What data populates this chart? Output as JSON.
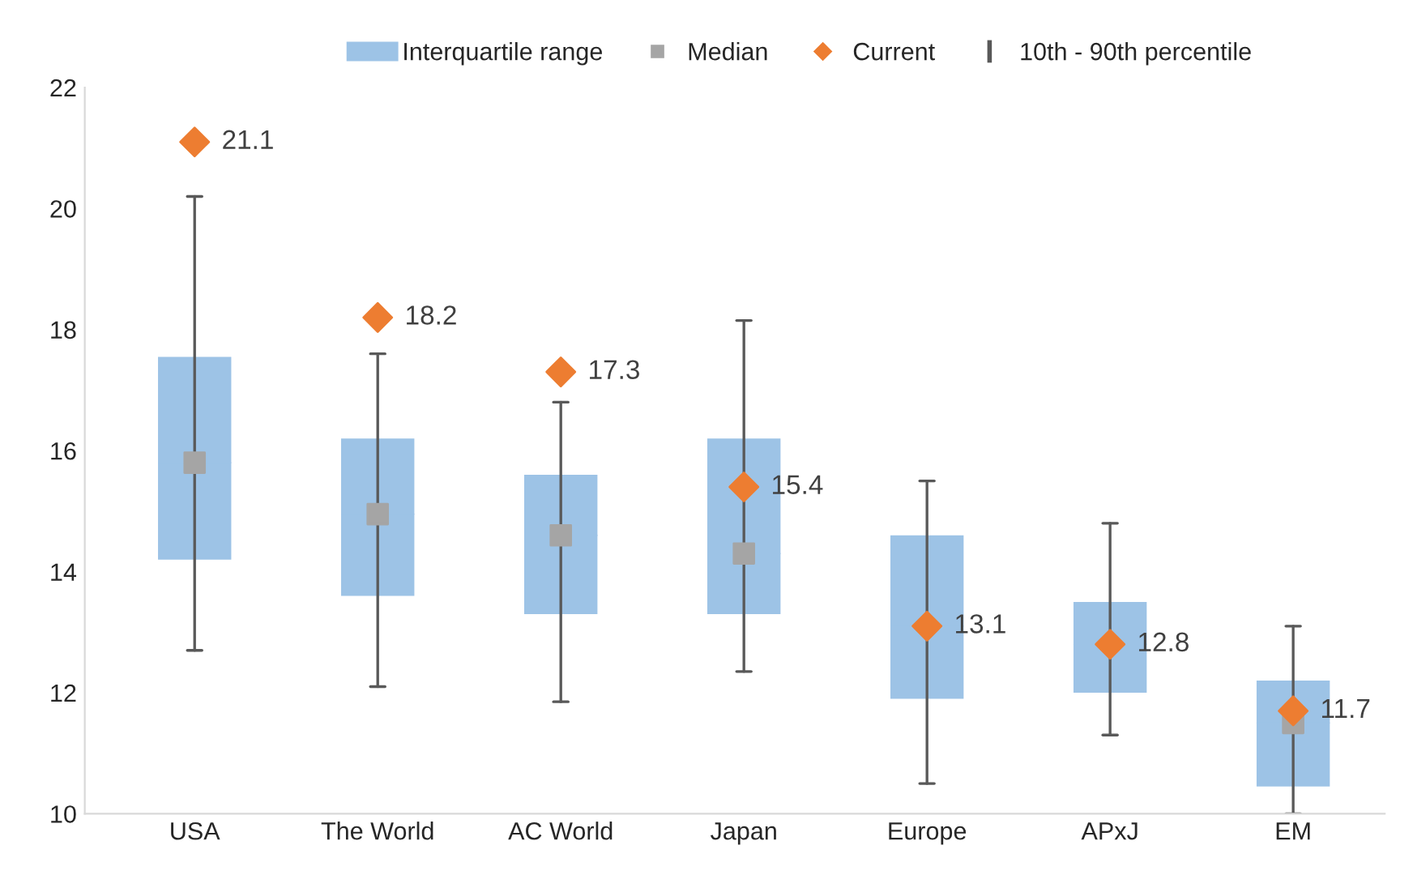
{
  "chart_data": {
    "type": "box",
    "categories": [
      "USA",
      "The World",
      "AC World",
      "Japan",
      "Europe",
      "APxJ",
      "EM"
    ],
    "ylim": [
      10,
      22
    ],
    "yticks": [
      10,
      12,
      14,
      16,
      18,
      20,
      22
    ],
    "grid": false,
    "legend": "top",
    "annotations": [
      "10th - 90th percentile"
    ],
    "series": [
      {
        "type": "box",
        "name": "Interquartile range",
        "color": "#9dc3e6",
        "boxes": [
          {
            "low": 12.7,
            "q1": 14.2,
            "median": 15.8,
            "q3": 17.55,
            "high": 20.2
          },
          {
            "low": 12.1,
            "q1": 13.6,
            "median": 14.95,
            "q3": 16.2,
            "high": 17.6
          },
          {
            "low": 11.85,
            "q1": 13.3,
            "median": 14.6,
            "q3": 15.6,
            "high": 16.8
          },
          {
            "low": 12.35,
            "q1": 13.3,
            "median": 14.3,
            "q3": 16.2,
            "high": 18.15
          },
          {
            "low": 10.5,
            "q1": 11.9,
            "median": 13.1,
            "q3": 14.6,
            "high": 15.5
          },
          {
            "low": 11.3,
            "q1": 12.0,
            "median": 12.8,
            "q3": 13.5,
            "high": 14.8
          },
          {
            "low": 10.0,
            "q1": 10.45,
            "median": 11.5,
            "q3": 12.2,
            "high": 13.1
          }
        ]
      },
      {
        "type": "scatter",
        "name": "Median",
        "color": "#a5a5a5",
        "marker": "square",
        "values": [
          15.8,
          14.95,
          14.6,
          14.3,
          null,
          null,
          11.5
        ]
      },
      {
        "type": "scatter",
        "name": "Current",
        "color": "#ed7d31",
        "marker": "diamond",
        "values": [
          21.1,
          18.2,
          17.3,
          15.4,
          13.1,
          12.8,
          11.7
        ],
        "value_labels": [
          "21.1",
          "18.2",
          "17.3",
          "15.4",
          "13.1",
          "12.8",
          "11.7"
        ]
      }
    ]
  }
}
